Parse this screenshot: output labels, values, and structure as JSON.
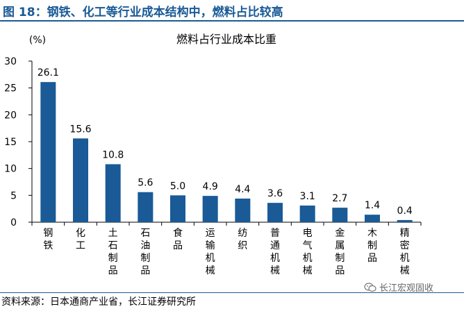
{
  "figure": {
    "title": "图 18：钢铁、化工等行业成本结构中，燃料占比较高",
    "source": "资料来源：日本通商产业省，长江证券研究所",
    "watermark": "长江宏观固收"
  },
  "colors": {
    "bar": "#1a5a96",
    "title": "#1a5a96"
  },
  "chart_data": {
    "type": "bar",
    "title": "燃料占行业成本比重",
    "unit_label": "(%)",
    "categories": [
      "钢铁",
      "化工",
      "土石制品",
      "石油制品",
      "食品",
      "运输机械",
      "纺织",
      "普通机械",
      "电气机械",
      "金属制品",
      "木制品",
      "精密机械"
    ],
    "values": [
      26.1,
      15.6,
      10.8,
      5.6,
      5.0,
      4.9,
      4.4,
      3.6,
      3.1,
      2.7,
      1.4,
      0.4
    ],
    "data_labels": [
      "26.1",
      "15.6",
      "10.8",
      "5.6",
      "5.0",
      "4.9",
      "4.4",
      "3.6",
      "3.1",
      "2.7",
      "1.4",
      "0.4"
    ],
    "ylim": [
      0,
      30
    ],
    "yticks": [
      0,
      5,
      10,
      15,
      20,
      25,
      30
    ],
    "grid": false,
    "legend": "none"
  }
}
